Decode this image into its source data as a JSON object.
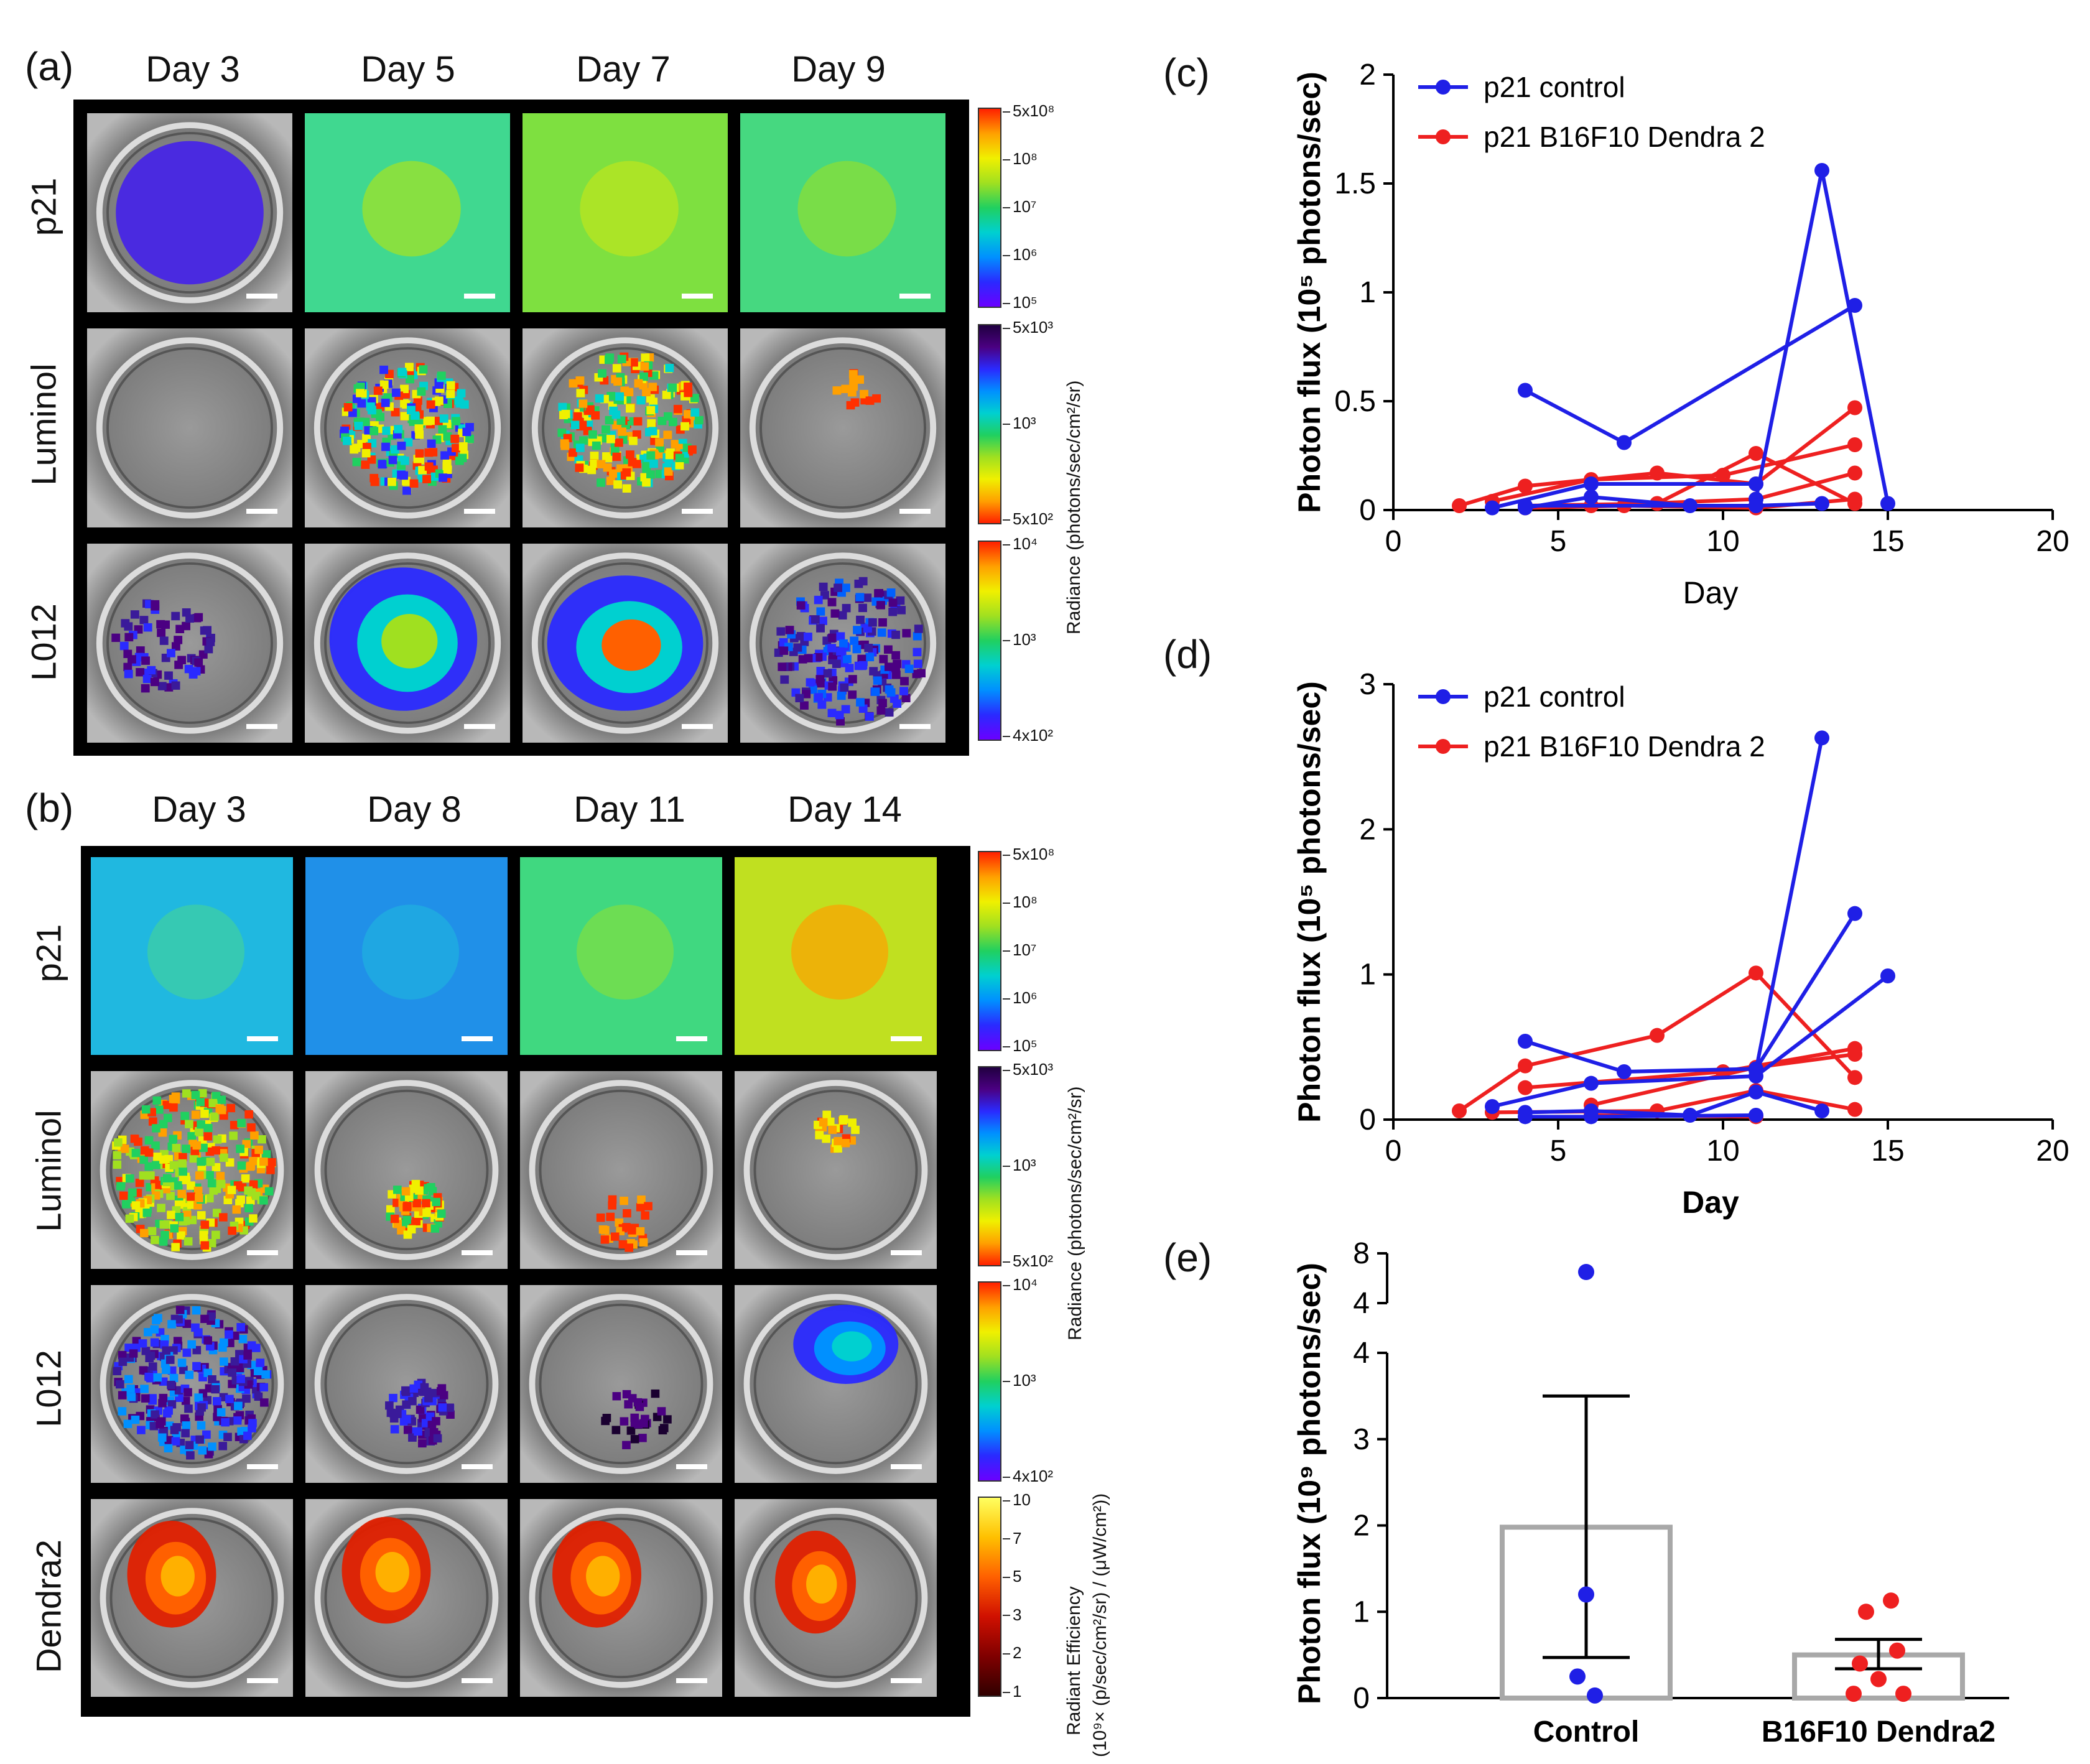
{
  "panel_a": {
    "label": "(a)",
    "columns": [
      "Day 3",
      "Day 5",
      "Day 7",
      "Day 9"
    ],
    "rows": [
      "p21",
      "Luminol",
      "L012"
    ],
    "colorbars": [
      {
        "ticks": [
          "5x10⁸",
          "10⁸",
          "10⁷",
          "10⁶",
          "10⁵"
        ],
        "palette": "rainbow"
      },
      {
        "ticks": [
          "5x10³",
          "10³",
          "5x10²"
        ],
        "palette": "rainbow-inverted"
      },
      {
        "ticks": [
          "10⁴",
          "10³",
          "4x10²"
        ],
        "palette": "rainbow"
      }
    ],
    "colorbar_title": "Radiance (photons/sec/cm²/sr)"
  },
  "panel_b": {
    "label": "(b)",
    "columns": [
      "Day 3",
      "Day 8",
      "Day 11",
      "Day 14"
    ],
    "rows": [
      "p21",
      "Luminol",
      "L012",
      "Dendra2"
    ],
    "colorbars": [
      {
        "ticks": [
          "5x10⁸",
          "10⁸",
          "10⁷",
          "10⁶",
          "10⁵"
        ],
        "palette": "rainbow"
      },
      {
        "ticks": [
          "5x10³",
          "10³",
          "5x10²"
        ],
        "palette": "rainbow-inverted"
      },
      {
        "ticks": [
          "10⁴",
          "10³",
          "4x10²"
        ],
        "palette": "rainbow"
      },
      {
        "ticks": [
          "10",
          "7",
          "5",
          "3",
          "2",
          "1"
        ],
        "palette": "hot"
      }
    ],
    "colorbar_title": "Radiance (photons/sec/cm²/sr)",
    "colorbar_title_dendra_line1": "Radiant Efficiency",
    "colorbar_title_dendra_line2": "(10⁹× (p/sec/cm²/sr) / (μW/cm²))"
  },
  "colors": {
    "control": "#1f1fe6",
    "b16": "#ee2020",
    "bar_outline": "#a8a8a8"
  },
  "chart_data": [
    {
      "panel": "(c)",
      "type": "line",
      "xlabel": "Day",
      "ylabel": "Photon flux (10⁵ photons/sec)",
      "xlim": [
        0,
        20
      ],
      "ylim": [
        0,
        2
      ],
      "xticks": [
        "0",
        "5",
        "10",
        "15",
        "20"
      ],
      "yticks": [
        "0",
        "0.5",
        "1",
        "1.5",
        "2"
      ],
      "legend": [
        "p21 control",
        "p21 B16F10 Dendra 2"
      ],
      "series": [
        {
          "name": "p21 control",
          "group": "control",
          "x": [
            4,
            7,
            14
          ],
          "y": [
            0.55,
            0.31,
            0.94
          ]
        },
        {
          "group": "control",
          "x": [
            11,
            13,
            15
          ],
          "y": [
            0.05,
            1.56,
            0.03
          ]
        },
        {
          "group": "control",
          "x": [
            3,
            6,
            11
          ],
          "y": [
            0.01,
            0.12,
            0.12
          ]
        },
        {
          "group": "control",
          "x": [
            4,
            6,
            9,
            11
          ],
          "y": [
            0.01,
            0.06,
            0.02,
            0.02
          ]
        },
        {
          "group": "control",
          "x": [
            4,
            11,
            13
          ],
          "y": [
            0.02,
            0.02,
            0.03
          ]
        },
        {
          "name": "p21 B16F10 Dendra 2",
          "group": "b16",
          "x": [
            2,
            4,
            8,
            11,
            14
          ],
          "y": [
            0.02,
            0.11,
            0.17,
            0.12,
            0.47
          ]
        },
        {
          "group": "b16",
          "x": [
            3,
            6,
            10,
            14
          ],
          "y": [
            0.04,
            0.14,
            0.16,
            0.3
          ]
        },
        {
          "group": "b16",
          "x": [
            4,
            8,
            11,
            14
          ],
          "y": [
            0.02,
            0.03,
            0.26,
            0.03
          ]
        },
        {
          "group": "b16",
          "x": [
            6,
            11,
            14
          ],
          "y": [
            0.02,
            0.05,
            0.17
          ]
        },
        {
          "group": "b16",
          "x": [
            4,
            7,
            11,
            14
          ],
          "y": [
            0.01,
            0.02,
            0.01,
            0.05
          ]
        }
      ]
    },
    {
      "panel": "(d)",
      "type": "line",
      "xlabel": "Day",
      "ylabel": "Photon flux (10⁵ photons/sec)",
      "xlim": [
        0,
        20
      ],
      "ylim": [
        0,
        3
      ],
      "xticks": [
        "0",
        "5",
        "10",
        "15",
        "20"
      ],
      "yticks": [
        "0",
        "1",
        "2",
        "3"
      ],
      "legend": [
        "p21 control",
        "p21 B16F10 Dendra 2"
      ],
      "series": [
        {
          "name": "p21 control",
          "group": "control",
          "x": [
            4,
            7,
            11,
            14
          ],
          "y": [
            0.54,
            0.33,
            0.35,
            1.42
          ]
        },
        {
          "group": "control",
          "x": [
            11,
            13
          ],
          "y": [
            0.34,
            2.63
          ]
        },
        {
          "group": "control",
          "x": [
            3,
            6,
            11,
            15
          ],
          "y": [
            0.09,
            0.25,
            0.3,
            0.99
          ]
        },
        {
          "group": "control",
          "x": [
            4,
            6,
            9,
            11,
            13
          ],
          "y": [
            0.05,
            0.06,
            0.03,
            0.19,
            0.06
          ]
        },
        {
          "group": "control",
          "x": [
            4,
            6,
            11
          ],
          "y": [
            0.02,
            0.02,
            0.03
          ]
        },
        {
          "name": "p21 B16F10 Dendra 2",
          "group": "b16",
          "x": [
            2,
            4,
            8,
            11,
            14
          ],
          "y": [
            0.06,
            0.37,
            0.58,
            1.01,
            0.29
          ]
        },
        {
          "group": "b16",
          "x": [
            4,
            10,
            14
          ],
          "y": [
            0.22,
            0.33,
            0.49
          ]
        },
        {
          "group": "b16",
          "x": [
            6,
            11,
            14
          ],
          "y": [
            0.1,
            0.36,
            0.45
          ]
        },
        {
          "group": "b16",
          "x": [
            3,
            8,
            11,
            14
          ],
          "y": [
            0.05,
            0.06,
            0.2,
            0.07
          ]
        },
        {
          "group": "b16",
          "x": [
            6,
            11
          ],
          "y": [
            0.03,
            0.02
          ]
        }
      ]
    },
    {
      "panel": "(e)",
      "type": "bar",
      "categories": [
        "Control",
        "B16F10 Dendra2"
      ],
      "values": [
        1.98,
        0.5
      ],
      "error": [
        [
          0.47,
          3.5
        ],
        [
          0.34,
          0.68
        ]
      ],
      "points": [
        [
          6.5,
          1.2,
          0.25,
          0.03
        ],
        [
          1.13,
          1.0,
          0.55,
          0.4,
          0.22,
          0.05,
          0.05
        ]
      ],
      "ylabel": "Photon flux (10⁹ photons/sec)",
      "yticks": [
        "0",
        "1",
        "2",
        "3",
        "4"
      ],
      "broken_yticks": [
        "4",
        "8"
      ],
      "ylim": [
        0,
        4
      ]
    }
  ]
}
